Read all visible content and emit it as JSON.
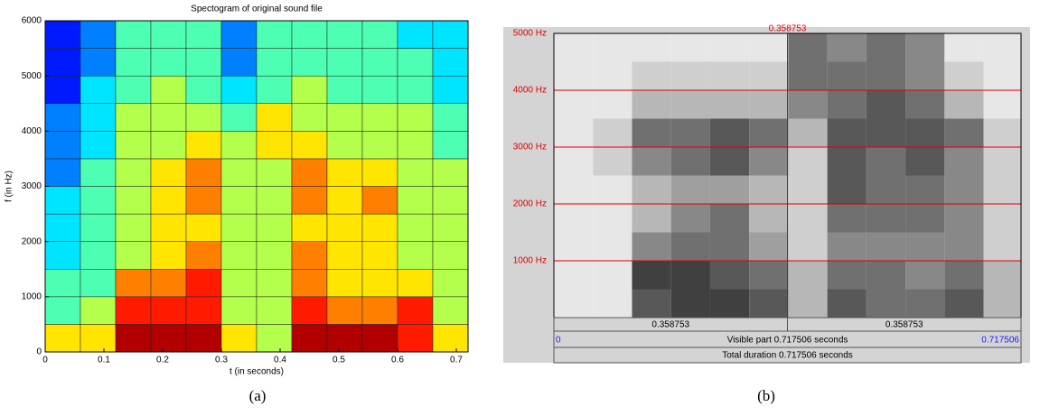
{
  "chart_data": [
    {
      "type": "heatmap",
      "title": "Spectogram of original sound file",
      "x_label": "t (in seconds)",
      "y_label": "f (in Hz)",
      "caption": "(a)",
      "colormap": "jet",
      "xlim": [
        0,
        0.72
      ],
      "xticks": [
        0,
        0.1,
        0.2,
        0.3,
        0.4,
        0.5,
        0.6,
        0.7
      ],
      "ylim": [
        0,
        6000
      ],
      "yticks": [
        0,
        1000,
        2000,
        3000,
        4000,
        5000,
        6000
      ],
      "xbins": [
        0,
        0.06,
        0.12,
        0.18,
        0.24,
        0.3,
        0.36,
        0.42,
        0.48,
        0.54,
        0.6,
        0.66,
        0.72
      ],
      "ybins": [
        0,
        500,
        1000,
        1500,
        2000,
        2500,
        3000,
        3500,
        4000,
        4500,
        5000,
        5500,
        6000
      ],
      "values": [
        [
          6,
          6,
          9,
          9,
          9,
          6,
          5,
          9,
          9,
          9,
          8,
          6
        ],
        [
          4,
          5,
          8,
          8,
          8,
          5,
          5,
          8,
          7,
          7,
          8,
          5
        ],
        [
          4,
          4,
          7,
          7,
          8,
          5,
          5,
          7,
          6,
          6,
          6,
          5
        ],
        [
          3,
          4,
          5,
          6,
          7,
          5,
          5,
          7,
          6,
          6,
          5,
          5
        ],
        [
          3,
          4,
          5,
          6,
          6,
          5,
          5,
          6,
          6,
          6,
          5,
          5
        ],
        [
          3,
          4,
          5,
          6,
          7,
          5,
          5,
          7,
          6,
          7,
          5,
          5
        ],
        [
          2,
          4,
          5,
          6,
          7,
          5,
          5,
          7,
          6,
          6,
          5,
          5
        ],
        [
          2,
          3,
          5,
          5,
          6,
          5,
          6,
          6,
          5,
          5,
          5,
          4
        ],
        [
          2,
          3,
          5,
          5,
          5,
          4,
          6,
          5,
          5,
          5,
          5,
          4
        ],
        [
          1,
          3,
          4,
          5,
          4,
          3,
          4,
          5,
          4,
          4,
          4,
          3
        ],
        [
          1,
          2,
          4,
          4,
          4,
          2,
          4,
          4,
          4,
          4,
          4,
          3
        ],
        [
          1,
          2,
          4,
          4,
          4,
          2,
          4,
          4,
          4,
          4,
          3,
          3
        ]
      ]
    },
    {
      "type": "heatmap",
      "caption": "(b)",
      "colormap": "gray",
      "grid": true,
      "grid_color": "#e00000",
      "xlim": [
        0,
        0.717506
      ],
      "ylim": [
        0,
        5000
      ],
      "yticks": [
        {
          "value": 1000,
          "label": "1000 Hz"
        },
        {
          "value": 2000,
          "label": "2000 Hz"
        },
        {
          "value": 3000,
          "label": "3000 Hz"
        },
        {
          "value": 4000,
          "label": "4000 Hz"
        },
        {
          "value": 5000,
          "label": "5000 Hz"
        }
      ],
      "cursor": 0.358753,
      "segments": [
        0.358753,
        0.358753
      ],
      "visible_label": "Visible part 0.717506 seconds",
      "total_label": "Total duration 0.717506 seconds",
      "xbins": [
        0,
        0.06,
        0.12,
        0.18,
        0.24,
        0.3,
        0.36,
        0.42,
        0.48,
        0.54,
        0.6,
        0.66,
        0.717506
      ],
      "ybins": [
        0,
        500,
        1000,
        1500,
        2000,
        2500,
        3000,
        3500,
        4000,
        4500,
        5000
      ],
      "values": [
        [
          1,
          1,
          7,
          8,
          8,
          7,
          3,
          7,
          6,
          6,
          7,
          3
        ],
        [
          1,
          1,
          8,
          8,
          7,
          6,
          3,
          6,
          6,
          5,
          6,
          3
        ],
        [
          1,
          1,
          5,
          6,
          6,
          4,
          2,
          5,
          5,
          5,
          5,
          2
        ],
        [
          1,
          1,
          3,
          5,
          6,
          3,
          2,
          6,
          6,
          6,
          5,
          2
        ],
        [
          1,
          1,
          3,
          4,
          4,
          3,
          2,
          7,
          6,
          6,
          5,
          2
        ],
        [
          1,
          2,
          5,
          6,
          7,
          5,
          2,
          7,
          6,
          7,
          5,
          2
        ],
        [
          1,
          2,
          6,
          6,
          7,
          6,
          3,
          7,
          7,
          7,
          6,
          2
        ],
        [
          1,
          1,
          3,
          3,
          3,
          3,
          5,
          6,
          7,
          6,
          3,
          1
        ],
        [
          1,
          1,
          2,
          2,
          2,
          2,
          6,
          6,
          6,
          5,
          2,
          1
        ],
        [
          1,
          1,
          1,
          1,
          1,
          1,
          6,
          5,
          6,
          5,
          1,
          1
        ]
      ]
    }
  ]
}
